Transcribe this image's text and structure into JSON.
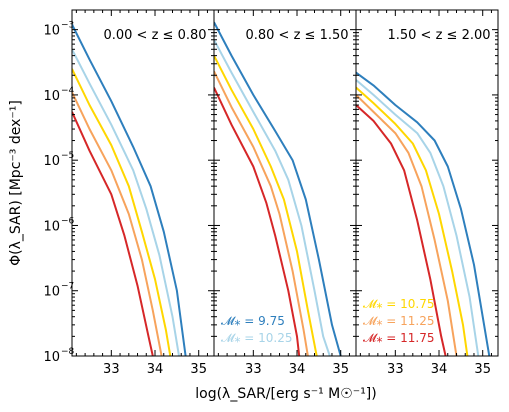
{
  "chart_data": {
    "type": "line",
    "ylabel": "Φ(λ_SAR) [Mpc⁻³ dex⁻¹]",
    "xlabel": "log(λ_SAR/[erg s⁻¹ M☉⁻¹])",
    "yscale": "log",
    "ylim": [
      1e-08,
      0.002
    ],
    "xlim": [
      32.1,
      35.35
    ],
    "xticks": [
      "33",
      "34",
      "35"
    ],
    "yticks": [
      {
        "value": 1e-08,
        "mantissa": "10",
        "exp": "−8"
      },
      {
        "value": 1e-07,
        "mantissa": "10",
        "exp": "−7"
      },
      {
        "value": 1e-06,
        "mantissa": "10",
        "exp": "−6"
      },
      {
        "value": 1e-05,
        "mantissa": "10",
        "exp": "−5"
      },
      {
        "value": 0.0001,
        "mantissa": "10",
        "exp": "−4"
      },
      {
        "value": 0.001,
        "mantissa": "10",
        "exp": "−3"
      }
    ],
    "colors": {
      "9.75": "#2e7fbd",
      "10.25": "#a8d4e8",
      "10.75": "#ffd700",
      "11.25": "#f7a35c",
      "11.75": "#d62728"
    },
    "panels": [
      {
        "title": "0.00 < z ≤ 0.80",
        "series": [
          {
            "mass": "9.75",
            "points": [
              [
                32.1,
                0.0012
              ],
              [
                32.5,
                0.00035
              ],
              [
                33.0,
                8e-05
              ],
              [
                33.5,
                1.6e-05
              ],
              [
                33.9,
                4e-06
              ],
              [
                34.2,
                8e-07
              ],
              [
                34.5,
                1e-07
              ],
              [
                34.7,
                1e-08
              ]
            ]
          },
          {
            "mass": "10.25",
            "points": [
              [
                32.1,
                0.0005
              ],
              [
                32.5,
                0.00015
              ],
              [
                33.0,
                3.5e-05
              ],
              [
                33.5,
                7e-06
              ],
              [
                33.8,
                1.8e-06
              ],
              [
                34.1,
                3.5e-07
              ],
              [
                34.4,
                4e-08
              ],
              [
                34.55,
                1e-08
              ]
            ]
          },
          {
            "mass": "10.75",
            "points": [
              [
                32.1,
                0.00025
              ],
              [
                32.5,
                7e-05
              ],
              [
                33.0,
                1.7e-05
              ],
              [
                33.4,
                4e-06
              ],
              [
                33.7,
                8e-07
              ],
              [
                34.0,
                1.5e-07
              ],
              [
                34.25,
                2.5e-08
              ],
              [
                34.35,
                1e-08
              ]
            ]
          },
          {
            "mass": "11.25",
            "points": [
              [
                32.1,
                0.00011
              ],
              [
                32.5,
                3e-05
              ],
              [
                33.0,
                7e-06
              ],
              [
                33.4,
                1.5e-06
              ],
              [
                33.7,
                3e-07
              ],
              [
                33.95,
                5e-08
              ],
              [
                34.15,
                1e-08
              ]
            ]
          },
          {
            "mass": "11.75",
            "points": [
              [
                32.1,
                5.5e-05
              ],
              [
                32.5,
                1.4e-05
              ],
              [
                33.0,
                3e-06
              ],
              [
                33.3,
                7e-07
              ],
              [
                33.6,
                1.2e-07
              ],
              [
                33.85,
                2e-08
              ],
              [
                33.95,
                1e-08
              ]
            ]
          }
        ],
        "legend": []
      },
      {
        "title": "0.80 < z ≤ 1.50",
        "series": [
          {
            "mass": "9.75",
            "points": [
              [
                32.1,
                0.0013
              ],
              [
                32.5,
                0.0004
              ],
              [
                33.0,
                0.0001
              ],
              [
                33.5,
                2.8e-05
              ],
              [
                33.9,
                1e-05
              ],
              [
                34.2,
                2.5e-06
              ],
              [
                34.5,
                3e-07
              ],
              [
                34.8,
                3e-08
              ],
              [
                35.0,
                1e-08
              ]
            ]
          },
          {
            "mass": "10.25",
            "points": [
              [
                32.1,
                0.0007
              ],
              [
                32.5,
                0.00022
              ],
              [
                33.0,
                5.5e-05
              ],
              [
                33.5,
                1.4e-05
              ],
              [
                33.8,
                5e-06
              ],
              [
                34.1,
                1e-06
              ],
              [
                34.4,
                1e-07
              ],
              [
                34.6,
                2e-08
              ],
              [
                34.75,
                1e-08
              ]
            ]
          },
          {
            "mass": "10.75",
            "points": [
              [
                32.1,
                0.0004
              ],
              [
                32.5,
                0.00012
              ],
              [
                33.0,
                3e-05
              ],
              [
                33.4,
                8e-06
              ],
              [
                33.7,
                2.5e-06
              ],
              [
                34.0,
                4e-07
              ],
              [
                34.25,
                5e-08
              ],
              [
                34.45,
                1e-08
              ]
            ]
          },
          {
            "mass": "11.25",
            "points": [
              [
                32.1,
                0.00023
              ],
              [
                32.5,
                6.5e-05
              ],
              [
                33.0,
                1.6e-05
              ],
              [
                33.4,
                4e-06
              ],
              [
                33.6,
                1.5e-06
              ],
              [
                33.9,
                2e-07
              ],
              [
                34.15,
                2.5e-08
              ],
              [
                34.25,
                1e-08
              ]
            ]
          },
          {
            "mass": "11.75",
            "points": [
              [
                32.1,
                0.00013
              ],
              [
                32.5,
                3.5e-05
              ],
              [
                33.0,
                8e-06
              ],
              [
                33.3,
                2.2e-06
              ],
              [
                33.5,
                7e-07
              ],
              [
                33.8,
                1e-07
              ],
              [
                34.0,
                2e-08
              ],
              [
                34.05,
                1e-08
              ]
            ]
          }
        ],
        "legend": [
          {
            "mass": "9.75",
            "label": "𝓜⁎ = 9.75"
          },
          {
            "mass": "10.25",
            "label": "𝓜⁎ = 10.25"
          }
        ]
      },
      {
        "title": "1.50 < z ≤ 2.00",
        "series": [
          {
            "mass": "9.75",
            "points": [
              [
                32.1,
                0.00022
              ],
              [
                32.5,
                0.00014
              ],
              [
                33.0,
                7e-05
              ],
              [
                33.5,
                3.8e-05
              ],
              [
                33.9,
                2e-05
              ],
              [
                34.2,
                8e-06
              ],
              [
                34.5,
                1.8e-06
              ],
              [
                34.8,
                2.5e-07
              ],
              [
                35.0,
                4e-08
              ],
              [
                35.15,
                1e-08
              ]
            ]
          },
          {
            "mass": "10.25",
            "points": [
              [
                32.1,
                0.00017
              ],
              [
                32.5,
                0.0001
              ],
              [
                33.0,
                5e-05
              ],
              [
                33.5,
                2.6e-05
              ],
              [
                33.8,
                1.3e-05
              ],
              [
                34.1,
                4e-06
              ],
              [
                34.4,
                7e-07
              ],
              [
                34.7,
                8e-08
              ],
              [
                34.9,
                1e-08
              ]
            ]
          },
          {
            "mass": "10.75",
            "points": [
              [
                32.1,
                0.00013
              ],
              [
                32.5,
                7.5e-05
              ],
              [
                33.0,
                3.6e-05
              ],
              [
                33.4,
                1.8e-05
              ],
              [
                33.7,
                7e-06
              ],
              [
                34.0,
                1.5e-06
              ],
              [
                34.3,
                2e-07
              ],
              [
                34.55,
                3e-08
              ],
              [
                34.65,
                1e-08
              ]
            ]
          },
          {
            "mass": "11.25",
            "points": [
              [
                32.1,
                0.0001
              ],
              [
                32.5,
                5.5e-05
              ],
              [
                33.0,
                2.6e-05
              ],
              [
                33.3,
                1.3e-05
              ],
              [
                33.6,
                4e-06
              ],
              [
                33.9,
                6e-07
              ],
              [
                34.2,
                7e-08
              ],
              [
                34.4,
                1e-08
              ]
            ]
          },
          {
            "mass": "11.75",
            "points": [
              [
                32.1,
                7e-05
              ],
              [
                32.5,
                4e-05
              ],
              [
                32.9,
                1.8e-05
              ],
              [
                33.2,
                7e-06
              ],
              [
                33.5,
                1.2e-06
              ],
              [
                33.8,
                1.5e-07
              ],
              [
                34.05,
                2e-08
              ],
              [
                34.15,
                1e-08
              ]
            ]
          }
        ],
        "legend": [
          {
            "mass": "10.75",
            "label": "𝓜⁎ = 10.75"
          },
          {
            "mass": "11.25",
            "label": "𝓜⁎ = 11.25"
          },
          {
            "mass": "11.75",
            "label": "𝓜⁎ = 11.75"
          }
        ]
      }
    ]
  }
}
